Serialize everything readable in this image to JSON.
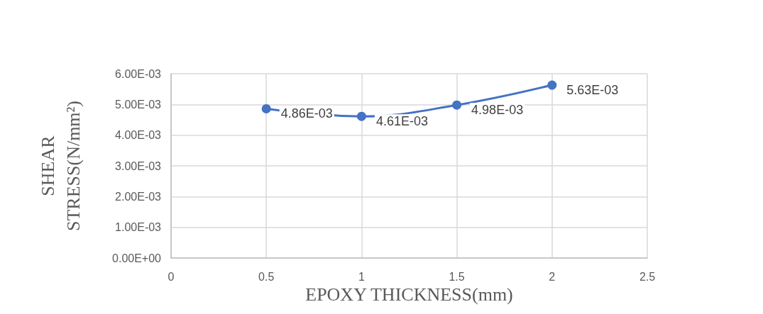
{
  "chart_data": {
    "type": "line",
    "xlabel": "EPOXY THICKNESS(mm)",
    "ylabel": "SHEAR STRESS(N/mm²)",
    "x": [
      0.5,
      1,
      1.5,
      2
    ],
    "series": [
      {
        "color": "#4472c4",
        "values": [
          0.00486,
          0.00461,
          0.00498,
          0.00563
        ],
        "value_labels": [
          "4.86E-03",
          "4.61E-03",
          "4.98E-03",
          "5.63E-03"
        ]
      }
    ],
    "xlim": [
      0,
      2.5
    ],
    "xticks": [
      0,
      0.5,
      1,
      1.5,
      2,
      2.5
    ],
    "ylim": [
      0,
      0.006
    ],
    "yticks": [
      {
        "value": 0,
        "label": "0.00E+00"
      },
      {
        "value": 0.001,
        "label": "1.00E-03"
      },
      {
        "value": 0.002,
        "label": "2.00E-03"
      },
      {
        "value": 0.003,
        "label": "3.00E-03"
      },
      {
        "value": 0.004,
        "label": "4.00E-03"
      },
      {
        "value": 0.005,
        "label": "5.00E-03"
      },
      {
        "value": 0.006,
        "label": "6.00E-03"
      }
    ],
    "grid": true,
    "marker": "circle",
    "line_style": "solid"
  }
}
